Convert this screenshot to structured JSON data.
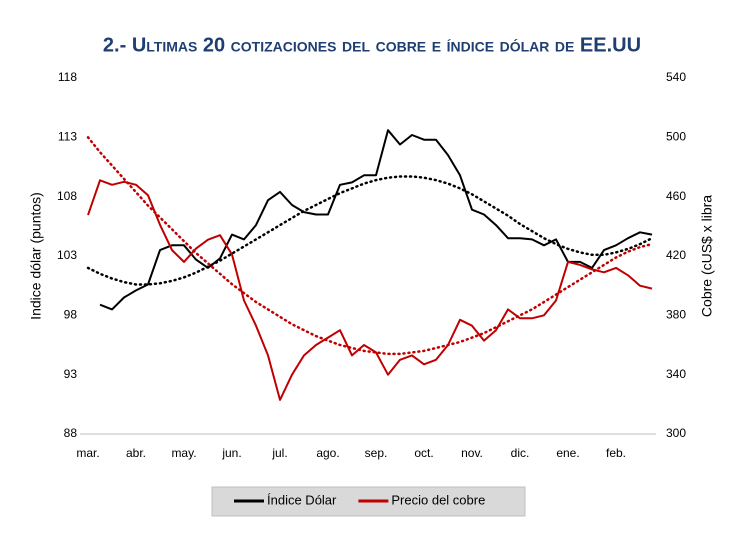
{
  "chart_data": {
    "type": "line",
    "title": "2.- Ultimas 20 cotizaciones del cobre e índice dólar de EE.UU",
    "ylabel": "Indice dólar (puntos)",
    "y2label": "Cobre (cUS$ x libra",
    "categories": [
      "mar.",
      null,
      null,
      null,
      "abr.",
      null,
      null,
      null,
      "may.",
      null,
      null,
      null,
      "jun.",
      null,
      null,
      null,
      "jul.",
      null,
      null,
      null,
      "ago.",
      null,
      null,
      null,
      "sep.",
      null,
      null,
      null,
      "oct.",
      null,
      null,
      null,
      "nov.",
      null,
      null,
      null,
      "dic.",
      null,
      null,
      null,
      "ene.",
      null,
      null,
      null,
      "feb.",
      null,
      null,
      null
    ],
    "ylim": [
      88,
      118
    ],
    "yticks": [
      88,
      93,
      98,
      103,
      108,
      113,
      118
    ],
    "y2lim": [
      300,
      540
    ],
    "y2ticks": [
      300,
      340,
      380,
      420,
      460,
      500,
      540
    ],
    "grid": false,
    "legend": "bottom",
    "series": [
      {
        "name": "Índice Dólar",
        "color": "#000000",
        "values": [
          null,
          98.9,
          98.5,
          99.5,
          100.1,
          100.6,
          103.5,
          103.9,
          103.9,
          102.7,
          102.0,
          102.8,
          104.8,
          104.4,
          105.6,
          107.7,
          108.4,
          107.3,
          106.7,
          106.5,
          106.5,
          109.0,
          109.2,
          109.8,
          109.8,
          113.6,
          112.4,
          113.2,
          112.8,
          112.8,
          111.5,
          109.8,
          106.9,
          106.5,
          105.6,
          104.5,
          104.5,
          104.4,
          103.9,
          104.4,
          102.5,
          102.5,
          102.0,
          103.5,
          103.9,
          104.5,
          105.0,
          104.8
        ]
      },
      {
        "name": "Precio del cobre",
        "color": "#c00000",
        "axis": "y2",
        "values": [
          447.6,
          471,
          468,
          470,
          468,
          461,
          441,
          424,
          416,
          425,
          431,
          434,
          421,
          390,
          373,
          353,
          323,
          340,
          353,
          360,
          365,
          370,
          353,
          360,
          355,
          340,
          350,
          353,
          347,
          350,
          360,
          377,
          373,
          363,
          370,
          384,
          378,
          378,
          380,
          390,
          416,
          414,
          411,
          409,
          412,
          407,
          400,
          398
        ]
      },
      {
        "color": "#000000",
        "dash": "dotted",
        "values": [
          102.0,
          101.5,
          101.1,
          100.8,
          100.6,
          100.6,
          100.7,
          100.9,
          101.2,
          101.6,
          102.1,
          102.6,
          103.2,
          103.8,
          104.4,
          105.0,
          105.6,
          106.2,
          106.8,
          107.3,
          107.8,
          108.3,
          108.7,
          109.1,
          109.4,
          109.6,
          109.7,
          109.7,
          109.6,
          109.4,
          109.1,
          108.7,
          108.2,
          107.6,
          107.0,
          106.4,
          105.7,
          105.1,
          104.5,
          104.0,
          103.6,
          103.3,
          103.1,
          103.1,
          103.3,
          103.6,
          104.0,
          104.5
        ]
      },
      {
        "color": "#c00000",
        "dash": "dotted",
        "axis": "y2",
        "values": [
          500,
          490,
          481,
          472,
          463,
          454,
          446,
          438,
          430,
          422,
          415,
          408,
          401,
          395,
          389,
          384,
          379,
          374,
          370,
          366,
          363,
          360,
          358,
          356,
          355,
          354,
          354,
          355,
          356,
          358,
          360,
          362,
          365,
          368,
          372,
          376,
          380,
          384,
          389,
          394,
          399,
          404,
          409,
          414,
          419,
          423,
          426,
          428
        ]
      }
    ]
  }
}
